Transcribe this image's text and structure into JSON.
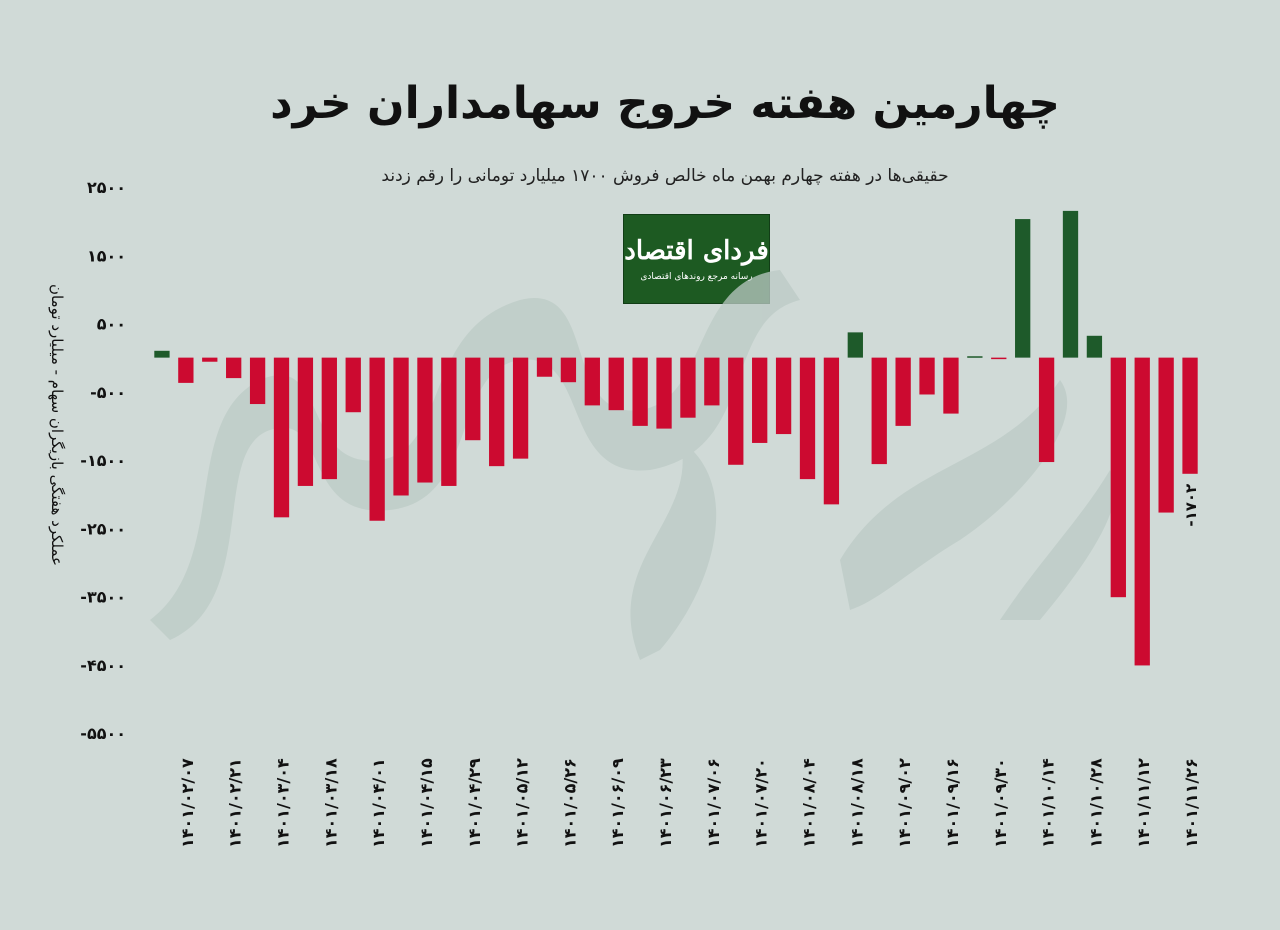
{
  "title": "چهارمین هفته خروج سهامداران خرد",
  "subtitle": "حقیقی‌ها در هفته چهارم بهمن ماه خالص فروش ۱۷۰۰ میلیارد تومانی را رقم زدند",
  "logo": {
    "name": "فردای اقتصاد",
    "tagline": "رسانه مرجع روندهای اقتصادی"
  },
  "chart_data": {
    "type": "bar",
    "ylabel": "عملکرد هفتگی بازیگران سهام - میلیارد تومان",
    "ylim": [
      -5500,
      2500
    ],
    "yticks": [
      2500,
      1500,
      500,
      -500,
      -1500,
      -2500,
      -3500,
      -4500,
      -5500
    ],
    "ytick_labels": [
      "۲۵۰۰",
      "۱۵۰۰",
      "۵۰۰",
      "-۵۰۰",
      "-۱۵۰۰",
      "-۲۵۰۰",
      "-۳۵۰۰",
      "-۴۵۰۰",
      "-۵۵۰۰"
    ],
    "categories": [
      "",
      "۱۴۰۱/۰۲/۰۷",
      "",
      "۱۴۰۱/۰۲/۲۱",
      "",
      "۱۴۰۱/۰۳/۰۴",
      "",
      "۱۴۰۱/۰۳/۱۸",
      "",
      "۱۴۰۱/۰۴/۰۱",
      "",
      "۱۴۰۱/۰۴/۱۵",
      "",
      "۱۴۰۱/۰۴/۲۹",
      "",
      "۱۴۰۱/۰۵/۱۲",
      "",
      "۱۴۰۱/۰۵/۲۶",
      "",
      "۱۴۰۱/۰۶/۰۹",
      "",
      "۱۴۰۱/۰۶/۲۳",
      "",
      "۱۴۰۱/۰۷/۰۶",
      "",
      "۱۴۰۱/۰۷/۲۰",
      "",
      "۱۴۰۱/۰۸/۰۴",
      "",
      "۱۴۰۱/۰۸/۱۸",
      "",
      "۱۴۰۱/۰۹/۰۲",
      "",
      "۱۴۰۱/۰۹/۱۶",
      "",
      "۱۴۰۱/۰۹/۳۰",
      "",
      "۱۴۰۱/۱۰/۱۴",
      "",
      "۱۴۰۱/۱۰/۲۸",
      "",
      "۱۴۰۱/۱۱/۱۲",
      "",
      "۱۴۰۱/۱۱/۲۶"
    ],
    "values": [
      100,
      -370,
      -60,
      -300,
      -680,
      -2340,
      -1880,
      -1780,
      -800,
      -2390,
      -2020,
      -1830,
      -1880,
      -1210,
      -1590,
      -1480,
      -280,
      -360,
      -700,
      -770,
      -1000,
      -1040,
      -880,
      -700,
      -1570,
      -1250,
      -1120,
      -1780,
      -2150,
      370,
      -1560,
      -1000,
      -540,
      -820,
      20,
      -20,
      2030,
      -1530,
      2150,
      320,
      -3510,
      -4510,
      -2270,
      -1702
    ],
    "annotations": [
      {
        "category_index": 43,
        "text": "-۱۷۰۲"
      }
    ],
    "colors": {
      "positive": "#1e5a2a",
      "negative": "#cc0a30"
    },
    "grid": false
  }
}
